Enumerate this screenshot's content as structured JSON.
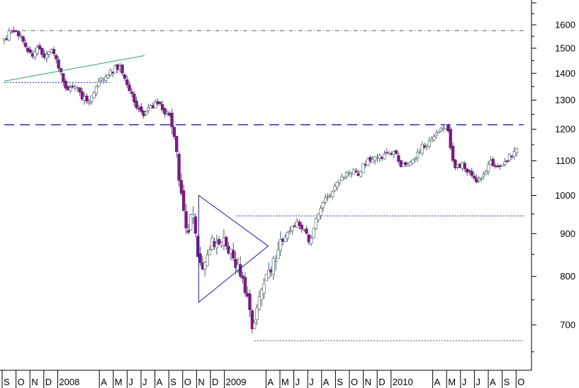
{
  "chart_data": {
    "type": "candlestick",
    "title": "",
    "xlabel": "",
    "ylabel": "",
    "yscale": "log",
    "ylim": [
      630,
      1720
    ],
    "y_ticks": [
      700,
      800,
      900,
      1000,
      1100,
      1200,
      1300,
      1400,
      1500,
      1600
    ],
    "x_ticks": [
      {
        "label": "S",
        "x": 0
      },
      {
        "label": "O",
        "x": 1
      },
      {
        "label": "N",
        "x": 2
      },
      {
        "label": "D",
        "x": 3
      },
      {
        "label": "2008",
        "x": 4
      },
      {
        "label": "A",
        "x": 7
      },
      {
        "label": "M",
        "x": 8
      },
      {
        "label": "J",
        "x": 9
      },
      {
        "label": "J",
        "x": 10
      },
      {
        "label": "A",
        "x": 11
      },
      {
        "label": "S",
        "x": 12
      },
      {
        "label": "O",
        "x": 13
      },
      {
        "label": "N",
        "x": 14
      },
      {
        "label": "D",
        "x": 15
      },
      {
        "label": "2009",
        "x": 16
      },
      {
        "label": "A",
        "x": 19
      },
      {
        "label": "M",
        "x": 20
      },
      {
        "label": "J",
        "x": 21
      },
      {
        "label": "J",
        "x": 22
      },
      {
        "label": "A",
        "x": 23
      },
      {
        "label": "S",
        "x": 24
      },
      {
        "label": "O",
        "x": 25
      },
      {
        "label": "N",
        "x": 26
      },
      {
        "label": "D",
        "x": 27
      },
      {
        "label": "2010",
        "x": 28
      },
      {
        "label": "A",
        "x": 31
      },
      {
        "label": "M",
        "x": 32
      },
      {
        "label": "J",
        "x": 33
      },
      {
        "label": "J",
        "x": 34
      },
      {
        "label": "A",
        "x": 35
      },
      {
        "label": "S",
        "x": 36
      },
      {
        "label": "O",
        "x": 37
      }
    ],
    "x_range": [
      0,
      37.4
    ],
    "price_path": [
      [
        0.0,
        1540
      ],
      [
        0.5,
        1570
      ],
      [
        1.0,
        1565
      ],
      [
        1.5,
        1510
      ],
      [
        2.0,
        1470
      ],
      [
        2.3,
        1500
      ],
      [
        2.7,
        1480
      ],
      [
        3.0,
        1460
      ],
      [
        3.3,
        1490
      ],
      [
        3.6,
        1470
      ],
      [
        4.0,
        1420
      ],
      [
        4.2,
        1370
      ],
      [
        4.5,
        1330
      ],
      [
        5.0,
        1360
      ],
      [
        5.5,
        1320
      ],
      [
        6.0,
        1290
      ],
      [
        6.4,
        1330
      ],
      [
        7.0,
        1380
      ],
      [
        7.5,
        1400
      ],
      [
        8.0,
        1420
      ],
      [
        8.5,
        1410
      ],
      [
        9.0,
        1340
      ],
      [
        9.5,
        1280
      ],
      [
        10.0,
        1250
      ],
      [
        10.5,
        1270
      ],
      [
        11.0,
        1290
      ],
      [
        11.5,
        1260
      ],
      [
        12.0,
        1240
      ],
      [
        12.3,
        1150
      ],
      [
        12.6,
        1050
      ],
      [
        12.9,
        950
      ],
      [
        13.2,
        900
      ],
      [
        13.5,
        960
      ],
      [
        13.8,
        880
      ],
      [
        14.2,
        800
      ],
      [
        14.6,
        860
      ],
      [
        15.0,
        880
      ],
      [
        15.4,
        860
      ],
      [
        15.8,
        900
      ],
      [
        16.1,
        860
      ],
      [
        16.5,
        840
      ],
      [
        16.9,
        820
      ],
      [
        17.2,
        790
      ],
      [
        17.6,
        740
      ],
      [
        17.9,
        690
      ],
      [
        18.2,
        730
      ],
      [
        18.6,
        770
      ],
      [
        19.0,
        810
      ],
      [
        19.5,
        840
      ],
      [
        20.0,
        880
      ],
      [
        20.5,
        900
      ],
      [
        21.0,
        930
      ],
      [
        21.5,
        910
      ],
      [
        22.0,
        880
      ],
      [
        22.4,
        940
      ],
      [
        23.0,
        990
      ],
      [
        23.5,
        1010
      ],
      [
        24.0,
        1040
      ],
      [
        24.5,
        1060
      ],
      [
        25.0,
        1070
      ],
      [
        25.5,
        1060
      ],
      [
        26.0,
        1095
      ],
      [
        26.5,
        1100
      ],
      [
        27.0,
        1110
      ],
      [
        27.5,
        1120
      ],
      [
        28.0,
        1130
      ],
      [
        28.5,
        1090
      ],
      [
        29.0,
        1080
      ],
      [
        29.5,
        1110
      ],
      [
        30.0,
        1140
      ],
      [
        30.5,
        1160
      ],
      [
        31.0,
        1175
      ],
      [
        31.5,
        1200
      ],
      [
        31.9,
        1210
      ],
      [
        32.2,
        1110
      ],
      [
        32.5,
        1080
      ],
      [
        33.0,
        1090
      ],
      [
        33.5,
        1060
      ],
      [
        34.0,
        1030
      ],
      [
        34.5,
        1060
      ],
      [
        35.0,
        1100
      ],
      [
        35.5,
        1080
      ],
      [
        36.0,
        1090
      ],
      [
        36.5,
        1120
      ],
      [
        37.0,
        1140
      ]
    ],
    "candle_width": 0.17,
    "annotations": {
      "hlines": [
        {
          "y": 1575,
          "style": "dashdot",
          "color": "#555555",
          "x_from": 0.6,
          "x_to": 37.4
        },
        {
          "y": 1215,
          "style": "longdash",
          "color": "#1b1bb5",
          "x_from": 0,
          "x_to": 37.4
        },
        {
          "y": 945,
          "style": "dotted",
          "color": "#1b1bb5",
          "x_from": 16.7,
          "x_to": 37.4
        },
        {
          "y": 670,
          "style": "dotted",
          "color": "#555555",
          "x_from": 18.0,
          "x_to": 37.4
        },
        {
          "y": 1365,
          "style": "dotted",
          "color": "#1b1bb5",
          "x_from": 0,
          "x_to": 7.6
        }
      ],
      "trendlines": [
        {
          "from": [
            0.0,
            1370
          ],
          "to": [
            10.1,
            1470
          ],
          "color": "#22aa55"
        }
      ],
      "triangle": {
        "points": [
          [
            14.0,
            1000
          ],
          [
            14.0,
            745
          ],
          [
            19.0,
            870
          ]
        ],
        "color": "#1b1bb5"
      }
    },
    "colors": {
      "bull_body": "#ffffff",
      "bull_border": "#6a7f88",
      "bear_body": "#7a1a82",
      "bear_border": "#7a1a82",
      "wick": "#4a5a64",
      "axis": "#000000"
    }
  }
}
